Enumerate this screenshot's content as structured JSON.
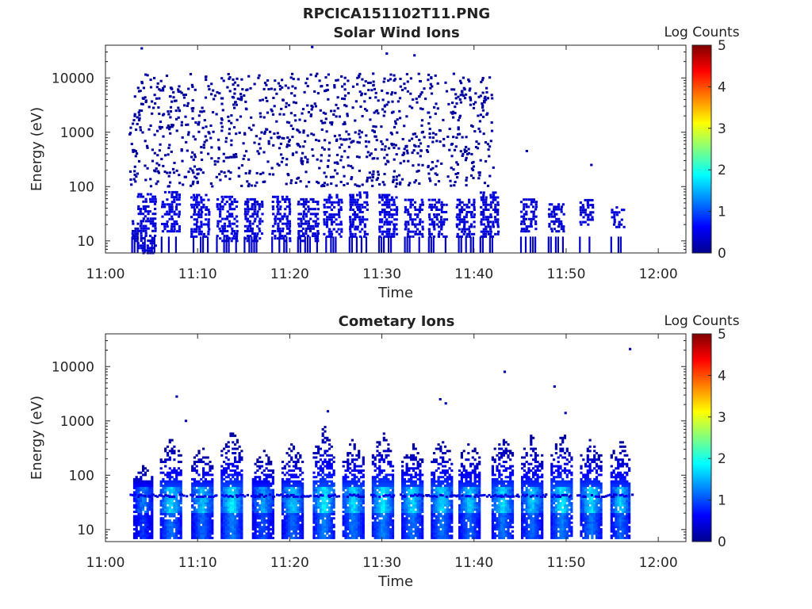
{
  "figure_title": "RPCICA151102T11.PNG",
  "colorbar_label": "Log Counts",
  "colorbar_ticks": [
    "0",
    "1",
    "2",
    "3",
    "4",
    "5"
  ],
  "colorbar_range": [
    0,
    5
  ],
  "colormap": [
    "#00008f",
    "#0000ff",
    "#0080ff",
    "#00ffff",
    "#80ff80",
    "#ffff00",
    "#ff8000",
    "#ff0000",
    "#800000"
  ],
  "chart_data": [
    {
      "type": "heatmap",
      "title": "Solar Wind Ions",
      "xlabel": "Time",
      "ylabel": "Energy (eV)",
      "x_ticks": [
        "11:00",
        "11:10",
        "11:20",
        "11:30",
        "11:40",
        "11:50",
        "12:00"
      ],
      "x_range_minutes": [
        0,
        63
      ],
      "y_ticks": [
        "10",
        "100",
        "1000",
        "10000"
      ],
      "y_scale": "log",
      "y_range": [
        6,
        40000
      ],
      "scatter_region": {
        "t_start_min": 2.5,
        "t_end_min": 42,
        "energy_range": [
          100,
          12000
        ],
        "level": 0.1
      },
      "dense_bands": [
        {
          "t_start_min": 2.8,
          "t_end_min": 3.4,
          "energy_range": [
            10,
            25
          ],
          "level": 0.2
        },
        {
          "t_start_min": 3.4,
          "t_end_min": 5.4,
          "energy_range": [
            6,
            80
          ],
          "level": 0.3
        },
        {
          "t_start_min": 6.0,
          "t_end_min": 8.0,
          "energy_range": [
            15,
            80
          ],
          "level": 0.35
        },
        {
          "t_start_min": 9.2,
          "t_end_min": 11.2,
          "energy_range": [
            12,
            70
          ],
          "level": 0.35
        },
        {
          "t_start_min": 12.0,
          "t_end_min": 14.2,
          "energy_range": [
            10,
            70
          ],
          "level": 0.35
        },
        {
          "t_start_min": 15.0,
          "t_end_min": 17.0,
          "energy_range": [
            10,
            60
          ],
          "level": 0.3
        },
        {
          "t_start_min": 18.0,
          "t_end_min": 20.0,
          "energy_range": [
            10,
            70
          ],
          "level": 0.35
        },
        {
          "t_start_min": 20.8,
          "t_end_min": 23.0,
          "energy_range": [
            10,
            60
          ],
          "level": 0.3
        },
        {
          "t_start_min": 23.6,
          "t_end_min": 25.6,
          "energy_range": [
            12,
            70
          ],
          "level": 0.35
        },
        {
          "t_start_min": 26.4,
          "t_end_min": 28.4,
          "energy_range": [
            12,
            80
          ],
          "level": 0.35
        },
        {
          "t_start_min": 29.6,
          "t_end_min": 31.6,
          "energy_range": [
            12,
            70
          ],
          "level": 0.35
        },
        {
          "t_start_min": 32.4,
          "t_end_min": 34.4,
          "energy_range": [
            12,
            60
          ],
          "level": 0.3
        },
        {
          "t_start_min": 35.0,
          "t_end_min": 37.0,
          "energy_range": [
            12,
            60
          ],
          "level": 0.3
        },
        {
          "t_start_min": 38.0,
          "t_end_min": 40.0,
          "energy_range": [
            12,
            60
          ],
          "level": 0.3
        },
        {
          "t_start_min": 40.6,
          "t_end_min": 42.6,
          "energy_range": [
            12,
            80
          ],
          "level": 0.3
        },
        {
          "t_start_min": 45.0,
          "t_end_min": 46.6,
          "energy_range": [
            15,
            60
          ],
          "level": 0.3
        },
        {
          "t_start_min": 48.0,
          "t_end_min": 49.6,
          "energy_range": [
            15,
            50
          ],
          "level": 0.3
        },
        {
          "t_start_min": 51.4,
          "t_end_min": 52.8,
          "energy_range": [
            18,
            60
          ],
          "level": 0.3
        },
        {
          "t_start_min": 54.8,
          "t_end_min": 56.2,
          "energy_range": [
            18,
            45
          ],
          "level": 0.3
        }
      ],
      "isolated_points": [
        {
          "t_min": 3.8,
          "energy": 35000,
          "level": 0.2
        },
        {
          "t_min": 22.3,
          "energy": 37000,
          "level": 0.2
        },
        {
          "t_min": 30.4,
          "energy": 28000,
          "level": 0.2
        },
        {
          "t_min": 33.4,
          "energy": 26000,
          "level": 0.2
        },
        {
          "t_min": 45.6,
          "energy": 450,
          "level": 0.2
        },
        {
          "t_min": 52.6,
          "energy": 250,
          "level": 0.2
        }
      ]
    },
    {
      "type": "heatmap",
      "title": "Cometary Ions",
      "xlabel": "Time",
      "ylabel": "Energy (eV)",
      "x_ticks": [
        "11:00",
        "11:10",
        "11:20",
        "11:30",
        "11:40",
        "11:50",
        "12:00"
      ],
      "x_range_minutes": [
        0,
        63
      ],
      "y_ticks": [
        "10",
        "100",
        "1000",
        "10000"
      ],
      "y_scale": "log",
      "y_range": [
        6,
        40000
      ],
      "bursts": [
        {
          "t_center_min": 4.0,
          "peak_level": 1.1,
          "top_energy": 150,
          "width_min": 2.0
        },
        {
          "t_center_min": 7.0,
          "peak_level": 1.6,
          "top_energy": 500,
          "width_min": 2.2
        },
        {
          "t_center_min": 10.4,
          "peak_level": 1.5,
          "top_energy": 350,
          "width_min": 2.2
        },
        {
          "t_center_min": 13.6,
          "peak_level": 1.7,
          "top_energy": 700,
          "width_min": 2.2
        },
        {
          "t_center_min": 17.0,
          "peak_level": 1.3,
          "top_energy": 300,
          "width_min": 2.2
        },
        {
          "t_center_min": 20.2,
          "peak_level": 1.5,
          "top_energy": 400,
          "width_min": 2.2
        },
        {
          "t_center_min": 23.6,
          "peak_level": 1.7,
          "top_energy": 900,
          "width_min": 2.2
        },
        {
          "t_center_min": 26.8,
          "peak_level": 1.6,
          "top_energy": 500,
          "width_min": 2.2
        },
        {
          "t_center_min": 30.0,
          "peak_level": 1.7,
          "top_energy": 700,
          "width_min": 2.2
        },
        {
          "t_center_min": 33.2,
          "peak_level": 1.6,
          "top_energy": 400,
          "width_min": 2.2
        },
        {
          "t_center_min": 36.4,
          "peak_level": 1.6,
          "top_energy": 500,
          "width_min": 2.2
        },
        {
          "t_center_min": 39.4,
          "peak_level": 1.5,
          "top_energy": 450,
          "width_min": 2.2
        },
        {
          "t_center_min": 43.0,
          "peak_level": 1.6,
          "top_energy": 600,
          "width_min": 2.2
        },
        {
          "t_center_min": 46.2,
          "peak_level": 1.5,
          "top_energy": 600,
          "width_min": 2.2
        },
        {
          "t_center_min": 49.4,
          "peak_level": 1.7,
          "top_energy": 700,
          "width_min": 2.2
        },
        {
          "t_center_min": 52.6,
          "peak_level": 1.6,
          "top_energy": 500,
          "width_min": 2.2
        },
        {
          "t_center_min": 55.8,
          "peak_level": 1.5,
          "top_energy": 500,
          "width_min": 2.0
        }
      ],
      "isolated_points": [
        {
          "t_min": 7.6,
          "energy": 2800,
          "level": 0.2
        },
        {
          "t_min": 8.6,
          "energy": 1000,
          "level": 0.2
        },
        {
          "t_min": 24.0,
          "energy": 1500,
          "level": 0.2
        },
        {
          "t_min": 36.2,
          "energy": 2500,
          "level": 0.2
        },
        {
          "t_min": 36.8,
          "energy": 2100,
          "level": 0.2
        },
        {
          "t_min": 43.2,
          "energy": 8000,
          "level": 0.2
        },
        {
          "t_min": 48.6,
          "energy": 4300,
          "level": 0.2
        },
        {
          "t_min": 49.8,
          "energy": 1400,
          "level": 0.2
        },
        {
          "t_min": 56.8,
          "energy": 21000,
          "level": 0.2
        }
      ]
    }
  ]
}
